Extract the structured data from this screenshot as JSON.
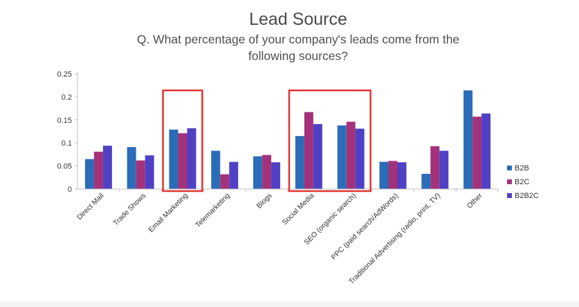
{
  "chart_data": {
    "type": "bar",
    "title": "Lead Source",
    "subtitle_lines": [
      "Q. What percentage of your company's leads come from the",
      "following sources?"
    ],
    "categories": [
      "Direct Mail",
      "Trade Shows",
      "Email Marketing",
      "Telemarketing",
      "Blogs",
      "Social Media",
      "SEO (organic search)",
      "PPC (paid search/AdWords)",
      "Traditional Advertising (radio, print, TV)",
      "Other"
    ],
    "series": [
      {
        "name": "B2B",
        "color": "#2b6cb8",
        "values": [
          0.065,
          0.091,
          0.129,
          0.083,
          0.071,
          0.115,
          0.138,
          0.059,
          0.033,
          0.214
        ]
      },
      {
        "name": "B2C",
        "color": "#a4327a",
        "values": [
          0.081,
          0.062,
          0.121,
          0.032,
          0.074,
          0.167,
          0.146,
          0.061,
          0.093,
          0.157
        ]
      },
      {
        "name": "B2B2C",
        "color": "#5040c4",
        "values": [
          0.094,
          0.073,
          0.132,
          0.059,
          0.058,
          0.141,
          0.131,
          0.058,
          0.083,
          0.164
        ]
      }
    ],
    "yticks": [
      "0",
      "0.05",
      "0.1",
      "0.15",
      "0.2",
      "0.25"
    ],
    "ylim": [
      0,
      0.25
    ],
    "xlabel": "",
    "ylabel": "",
    "grid": false,
    "legend_position": "right",
    "highlighted_categories": [
      [
        "Email Marketing"
      ],
      [
        "Social Media",
        "SEO (organic search)"
      ]
    ],
    "highlight_color": "#e0332f"
  }
}
